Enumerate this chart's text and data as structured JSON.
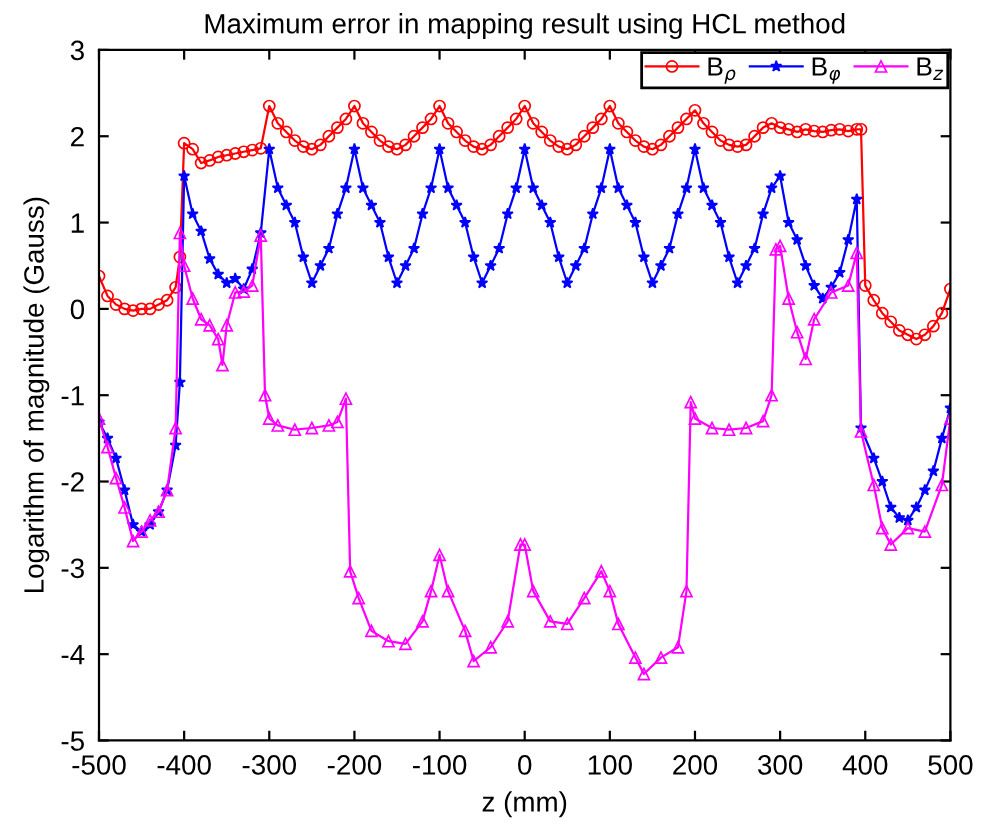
{
  "chart_data": {
    "type": "line",
    "title": "Maximum error in mapping result using HCL method",
    "xlabel": "z (mm)",
    "ylabel": "Logarithm of magnitude (Gauss)",
    "xlim": [
      -500,
      500
    ],
    "xticks": [
      -500,
      -400,
      -300,
      -200,
      -100,
      0,
      100,
      200,
      300,
      400,
      500
    ],
    "ylim": [
      -5,
      3
    ],
    "yticks": [
      -5,
      -4,
      -3,
      -2,
      -1,
      0,
      1,
      2,
      3
    ],
    "grid": false,
    "legend": "top right",
    "series": [
      {
        "name": "B$_{ρ}$",
        "color": "#ff0000",
        "marker": "circle",
        "x": [
          -500,
          -490,
          -480,
          -470,
          -460,
          -450,
          -440,
          -430,
          -420,
          -410,
          -405,
          -400,
          -390,
          -380,
          -370,
          -360,
          -350,
          -340,
          -330,
          -320,
          -310,
          -300,
          -290,
          -280,
          -270,
          -260,
          -250,
          -240,
          -230,
          -220,
          -210,
          -200,
          -190,
          -180,
          -170,
          -160,
          -150,
          -140,
          -130,
          -120,
          -110,
          -100,
          -90,
          -80,
          -70,
          -60,
          -50,
          -40,
          -30,
          -20,
          -10,
          0,
          10,
          20,
          30,
          40,
          50,
          60,
          70,
          80,
          90,
          100,
          110,
          120,
          130,
          140,
          150,
          160,
          170,
          180,
          190,
          200,
          210,
          220,
          230,
          240,
          250,
          260,
          270,
          280,
          290,
          300,
          310,
          320,
          330,
          340,
          350,
          360,
          370,
          380,
          390,
          395,
          400,
          410,
          420,
          430,
          440,
          450,
          460,
          470,
          480,
          490,
          500
        ],
        "values": [
          0.38,
          0.15,
          0.05,
          0.0,
          -0.02,
          0.0,
          0.0,
          0.05,
          0.1,
          0.25,
          0.6,
          1.92,
          1.85,
          1.69,
          1.72,
          1.76,
          1.78,
          1.8,
          1.82,
          1.84,
          1.86,
          2.35,
          2.15,
          2.05,
          1.95,
          1.88,
          1.85,
          1.9,
          2.0,
          2.1,
          2.2,
          2.35,
          2.15,
          2.05,
          1.95,
          1.88,
          1.85,
          1.9,
          2.0,
          2.1,
          2.2,
          2.35,
          2.15,
          2.05,
          1.95,
          1.88,
          1.85,
          1.9,
          2.0,
          2.1,
          2.2,
          2.35,
          2.15,
          2.05,
          1.95,
          1.88,
          1.85,
          1.9,
          2.0,
          2.1,
          2.2,
          2.35,
          2.15,
          2.05,
          1.95,
          1.88,
          1.85,
          1.9,
          2.0,
          2.1,
          2.2,
          2.3,
          2.15,
          2.05,
          1.95,
          1.9,
          1.88,
          1.9,
          2.0,
          2.1,
          2.15,
          2.1,
          2.08,
          2.05,
          2.08,
          2.06,
          2.05,
          2.07,
          2.08,
          2.06,
          2.08,
          2.08,
          0.27,
          0.1,
          -0.05,
          -0.15,
          -0.25,
          -0.3,
          -0.35,
          -0.3,
          -0.2,
          -0.05,
          0.23
        ]
      },
      {
        "name": "B$_{φ}$",
        "color": "#0000ff",
        "marker": "star",
        "x": [
          -500,
          -490,
          -480,
          -470,
          -460,
          -450,
          -440,
          -430,
          -420,
          -410,
          -405,
          -400,
          -390,
          -380,
          -370,
          -360,
          -350,
          -340,
          -330,
          -320,
          -310,
          -300,
          -290,
          -280,
          -270,
          -260,
          -250,
          -240,
          -230,
          -220,
          -210,
          -200,
          -190,
          -180,
          -170,
          -160,
          -150,
          -140,
          -130,
          -120,
          -110,
          -100,
          -90,
          -80,
          -70,
          -60,
          -50,
          -40,
          -30,
          -20,
          -10,
          0,
          10,
          20,
          30,
          40,
          50,
          60,
          70,
          80,
          90,
          100,
          110,
          120,
          130,
          140,
          150,
          160,
          170,
          180,
          190,
          200,
          210,
          220,
          230,
          240,
          250,
          260,
          270,
          280,
          290,
          300,
          310,
          320,
          330,
          340,
          350,
          360,
          370,
          380,
          390,
          395,
          410,
          420,
          430,
          440,
          450,
          460,
          470,
          480,
          490,
          500
        ],
        "values": [
          -1.31,
          -1.5,
          -1.73,
          -2.1,
          -2.5,
          -2.58,
          -2.5,
          -2.35,
          -2.1,
          -1.58,
          -0.85,
          1.54,
          1.1,
          0.9,
          0.58,
          0.4,
          0.3,
          0.35,
          0.23,
          0.46,
          0.88,
          1.85,
          1.4,
          1.2,
          1.0,
          0.6,
          0.3,
          0.5,
          0.7,
          1.1,
          1.4,
          1.85,
          1.4,
          1.2,
          1.0,
          0.6,
          0.3,
          0.5,
          0.7,
          1.1,
          1.4,
          1.85,
          1.4,
          1.2,
          1.0,
          0.6,
          0.3,
          0.5,
          0.7,
          1.1,
          1.4,
          1.85,
          1.4,
          1.2,
          1.0,
          0.6,
          0.3,
          0.5,
          0.7,
          1.1,
          1.4,
          1.85,
          1.4,
          1.2,
          1.0,
          0.6,
          0.3,
          0.5,
          0.7,
          1.1,
          1.4,
          1.85,
          1.4,
          1.2,
          1.0,
          0.6,
          0.3,
          0.5,
          0.7,
          1.1,
          1.4,
          1.54,
          1.0,
          0.8,
          0.5,
          0.27,
          0.12,
          0.25,
          0.42,
          0.8,
          1.27,
          -1.38,
          -1.73,
          -2.0,
          -2.3,
          -2.42,
          -2.45,
          -2.3,
          -2.1,
          -1.88,
          -1.5,
          -1.15
        ]
      },
      {
        "name": "B$_{z}$",
        "color": "#ff00ff",
        "marker": "triangle",
        "x": [
          -500,
          -490,
          -480,
          -470,
          -460,
          -450,
          -440,
          -430,
          -420,
          -410,
          -405,
          -400,
          -390,
          -380,
          -370,
          -360,
          -355,
          -350,
          -340,
          -330,
          -320,
          -310,
          -305,
          -300,
          -290,
          -270,
          -250,
          -230,
          -220,
          -210,
          -205,
          -195,
          -180,
          -160,
          -140,
          -120,
          -110,
          -100,
          -90,
          -70,
          -60,
          -40,
          -20,
          -5,
          0,
          10,
          30,
          50,
          70,
          90,
          100,
          110,
          130,
          140,
          160,
          180,
          190,
          195,
          200,
          220,
          240,
          260,
          280,
          290,
          295,
          300,
          310,
          320,
          330,
          340,
          360,
          380,
          390,
          395,
          410,
          420,
          430,
          450,
          470,
          490,
          500
        ],
        "values": [
          -1.27,
          -1.6,
          -1.96,
          -2.3,
          -2.69,
          -2.58,
          -2.45,
          -2.35,
          -2.1,
          -1.38,
          0.88,
          0.5,
          0.12,
          -0.12,
          -0.19,
          -0.35,
          -0.65,
          -0.19,
          0.19,
          0.2,
          0.27,
          0.85,
          -1.0,
          -1.27,
          -1.35,
          -1.4,
          -1.38,
          -1.35,
          -1.31,
          -1.04,
          -3.04,
          -3.35,
          -3.73,
          -3.85,
          -3.88,
          -3.62,
          -3.27,
          -2.85,
          -3.27,
          -3.73,
          -4.08,
          -3.92,
          -3.62,
          -2.73,
          -2.73,
          -3.27,
          -3.62,
          -3.65,
          -3.35,
          -3.04,
          -3.27,
          -3.65,
          -4.04,
          -4.23,
          -4.04,
          -3.92,
          -3.27,
          -1.08,
          -1.27,
          -1.38,
          -1.4,
          -1.38,
          -1.3,
          -1.0,
          0.69,
          0.73,
          0.12,
          -0.27,
          -0.58,
          -0.12,
          0.19,
          0.27,
          0.65,
          -1.42,
          -2.04,
          -2.54,
          -2.73,
          -2.54,
          -2.58,
          -2.04,
          -1.27
        ]
      }
    ]
  }
}
